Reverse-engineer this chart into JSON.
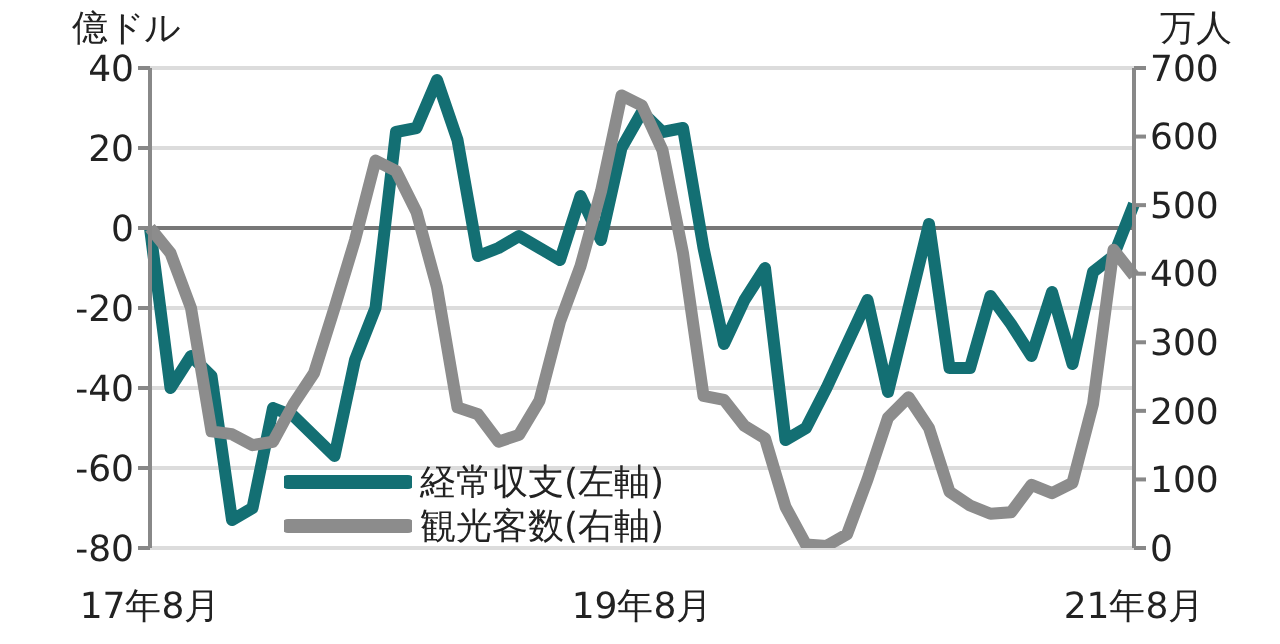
{
  "chart_data": {
    "type": "line",
    "ylabel": "億ドル",
    "y2label": "万人",
    "categories": [
      "17年8月",
      null,
      null,
      null,
      null,
      null,
      null,
      null,
      null,
      null,
      null,
      null,
      null,
      null,
      null,
      null,
      null,
      null,
      null,
      null,
      null,
      null,
      null,
      null,
      "19年8月",
      null,
      null,
      null,
      null,
      null,
      null,
      null,
      null,
      null,
      null,
      null,
      null,
      null,
      null,
      null,
      null,
      null,
      null,
      null,
      null,
      null,
      null,
      null,
      "21年8月"
    ],
    "series": [
      {
        "name": "経常収支(左軸)",
        "color": "#136f73",
        "values": [
          0,
          -40,
          -32,
          -37,
          -73,
          -70,
          -45,
          -47,
          -52,
          -57,
          -33,
          -20,
          24,
          25,
          37,
          22,
          -7,
          -5,
          -2,
          -5,
          -8,
          8,
          -3,
          20,
          29,
          24,
          25,
          -5,
          -29,
          -18,
          -10,
          -53,
          -50,
          -40,
          -29,
          -18,
          -41,
          -20,
          1,
          -35,
          -35,
          -17,
          -24,
          -32,
          -16,
          -34,
          -11,
          -7,
          6
        ]
      },
      {
        "name": "観光客数(右軸)",
        "color": "#8c8c8c",
        "axis": "y2",
        "values": [
          467,
          430,
          350,
          170,
          166,
          150,
          155,
          210,
          255,
          350,
          449,
          565,
          550,
          490,
          380,
          205,
          195,
          155,
          165,
          215,
          330,
          411,
          520,
          660,
          645,
          580,
          430,
          222,
          216,
          178,
          160,
          60,
          5,
          3,
          20,
          100,
          190,
          220,
          175,
          82,
          62,
          50,
          52,
          92,
          80,
          95,
          210,
          435,
          397
        ]
      }
    ],
    "ylim": [
      -80,
      40
    ],
    "yticks": [
      -80,
      -60,
      -40,
      -20,
      0,
      20,
      40
    ],
    "y2lim": [
      0,
      700
    ],
    "y2ticks": [
      0,
      100,
      200,
      300,
      400,
      500,
      600,
      700
    ],
    "grid": "y",
    "legend": "bottom left"
  }
}
